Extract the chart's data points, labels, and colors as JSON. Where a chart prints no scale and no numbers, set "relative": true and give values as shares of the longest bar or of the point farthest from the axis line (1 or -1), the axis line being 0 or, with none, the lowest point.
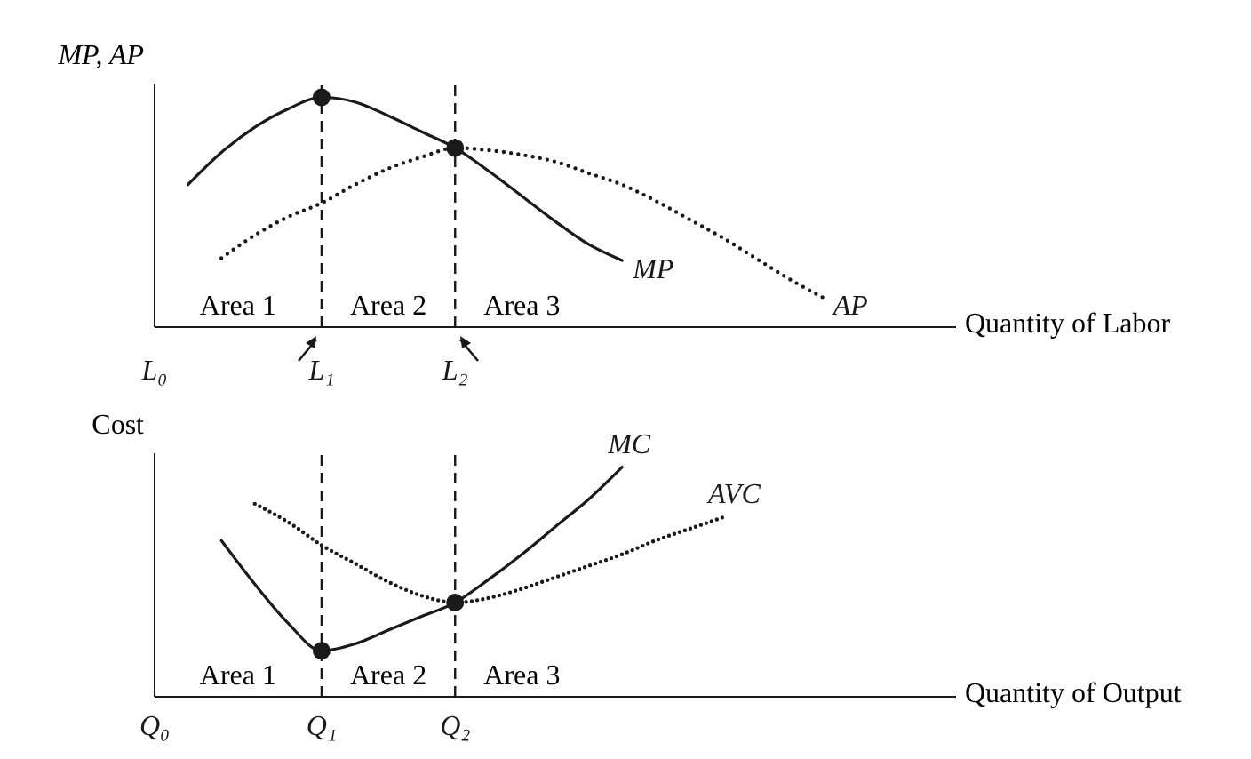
{
  "chart_data": [
    {
      "type": "line",
      "relative": true,
      "ylabel": "MP, AP",
      "xlabel": "Quantity of Labor",
      "legend": false,
      "categories": [
        "L₀",
        null,
        null,
        null,
        null,
        "L₁",
        null,
        null,
        null,
        "L₂",
        null,
        null,
        null,
        null,
        null,
        null,
        null,
        null,
        null,
        null,
        null,
        null,
        null,
        null,
        null
      ],
      "series": [
        {
          "name": "MP",
          "color": "#1a1a1a",
          "line_style": "solid",
          "values": [
            null,
            0.62,
            0.76,
            0.87,
            0.95,
            1.0,
            0.98,
            0.92,
            0.85,
            0.78,
            0.68,
            0.57,
            0.46,
            0.36,
            0.29,
            null,
            null,
            null,
            null,
            null,
            null,
            null,
            null,
            null,
            null
          ]
        },
        {
          "name": "AP",
          "color": "#1a1a1a",
          "line_style": "dotted",
          "values": [
            null,
            null,
            0.3,
            0.4,
            0.48,
            0.54,
            0.62,
            0.69,
            0.74,
            0.78,
            0.77,
            0.75,
            0.72,
            0.67,
            0.62,
            0.55,
            0.47,
            0.39,
            0.3,
            0.21,
            0.13,
            null,
            null,
            null,
            null
          ]
        },
        {
          "type": "scatter",
          "color": "#1a1a1a",
          "marker": "circle",
          "values": [
            null,
            null,
            null,
            null,
            null,
            1.0,
            null,
            null,
            null,
            0.78,
            null,
            null,
            null,
            null,
            null,
            null,
            null,
            null,
            null,
            null,
            null,
            null,
            null,
            null,
            null
          ]
        }
      ],
      "ref_lines": [
        {
          "axis": "x",
          "value": "L₁",
          "line_style": "dashed"
        },
        {
          "axis": "x",
          "value": "L₂",
          "line_style": "dashed"
        }
      ],
      "annotations": [
        "Area 1",
        "Area 2",
        "Area 3"
      ]
    },
    {
      "type": "line",
      "relative": true,
      "ylabel": "Cost",
      "xlabel": "Quantity of Output",
      "legend": false,
      "categories": [
        "Q₀",
        null,
        null,
        null,
        null,
        "Q₁",
        null,
        null,
        null,
        "Q₂",
        null,
        null,
        null,
        null,
        null,
        null,
        null,
        null,
        null,
        null,
        null,
        null,
        null,
        null,
        null
      ],
      "series": [
        {
          "name": "MC",
          "color": "#1a1a1a",
          "line_style": "solid",
          "values": [
            null,
            null,
            0.68,
            0.49,
            0.32,
            0.2,
            0.23,
            0.29,
            0.35,
            0.41,
            0.51,
            0.62,
            0.74,
            0.86,
            1.0,
            null,
            null,
            null,
            null,
            null,
            null,
            null,
            null,
            null,
            null
          ]
        },
        {
          "name": "AVC",
          "color": "#1a1a1a",
          "line_style": "dotted",
          "values": [
            null,
            null,
            null,
            0.84,
            0.76,
            0.66,
            0.58,
            0.5,
            0.44,
            0.41,
            0.43,
            0.47,
            0.52,
            0.57,
            0.62,
            0.68,
            0.73,
            0.78,
            null,
            null,
            null,
            null,
            null,
            null,
            null
          ]
        },
        {
          "type": "scatter",
          "color": "#1a1a1a",
          "marker": "circle",
          "values": [
            null,
            null,
            null,
            null,
            null,
            0.2,
            null,
            null,
            null,
            0.41,
            null,
            null,
            null,
            null,
            null,
            null,
            null,
            null,
            null,
            null,
            null,
            null,
            null,
            null,
            null
          ]
        }
      ],
      "ref_lines": [
        {
          "axis": "x",
          "value": "Q₁",
          "line_style": "dashed"
        },
        {
          "axis": "x",
          "value": "Q₂",
          "line_style": "dashed"
        }
      ],
      "annotations": [
        "Area 1",
        "Area 2",
        "Area 3"
      ]
    }
  ]
}
